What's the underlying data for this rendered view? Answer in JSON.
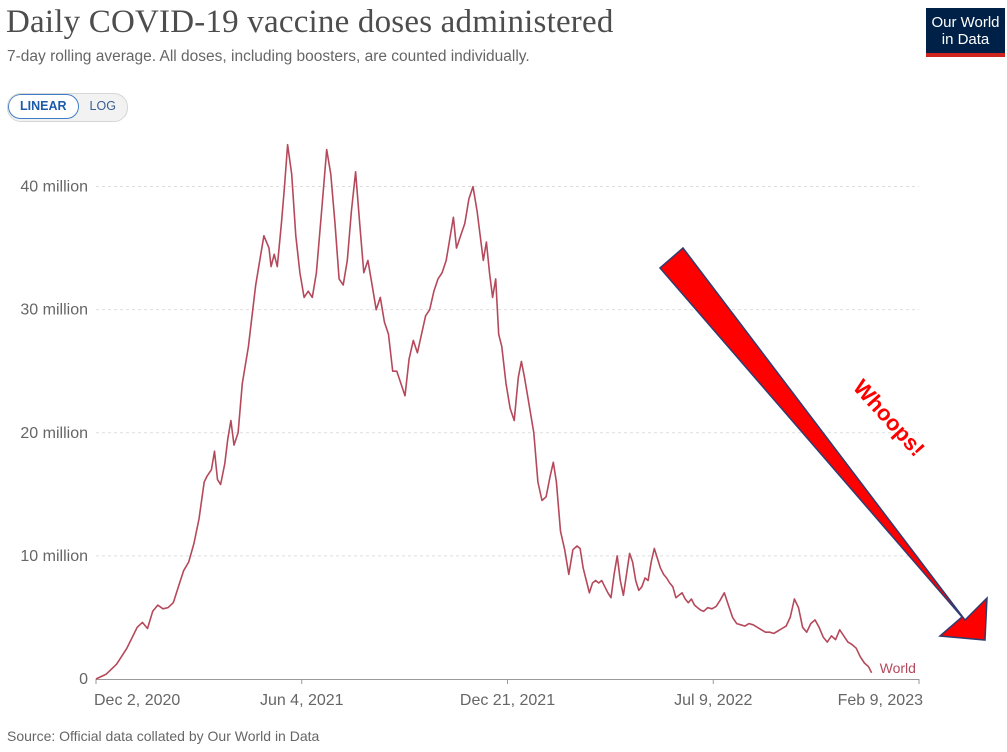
{
  "header": {
    "title": "Daily COVID-19 vaccine doses administered",
    "subtitle": "7-day rolling average. All doses, including boosters, are counted individually.",
    "logo_line1": "Our World",
    "logo_line2": "in Data",
    "logo_bg": "#002147",
    "logo_accent": "#ce261e"
  },
  "scale_toggle": {
    "linear_label": "LINEAR",
    "log_label": "LOG",
    "active": "linear"
  },
  "annotation": {
    "text": "Whoops!",
    "arrow_color": "#ff0000",
    "text_color": "#ff0000"
  },
  "footer": {
    "source": "Source: Official data collated by Our World in Data"
  },
  "chart_data": {
    "type": "line",
    "title": "Daily COVID-19 vaccine doses administered",
    "xlabel": "",
    "ylabel": "",
    "grid": true,
    "x_ticks": [
      "Dec 2, 2020",
      "Jun 4, 2021",
      "Dec 21, 2021",
      "Jul 9, 2022",
      "Feb 9, 2023"
    ],
    "y_ticks": [
      {
        "value": 0,
        "label": "0"
      },
      {
        "value": 10,
        "label": "10 million"
      },
      {
        "value": 20,
        "label": "20 million"
      },
      {
        "value": 30,
        "label": "30 million"
      },
      {
        "value": 40,
        "label": "40 million"
      }
    ],
    "x_unit": "days since Dec 2, 2020",
    "xlim": [
      0,
      799
    ],
    "ylim": [
      0,
      45
    ],
    "y_unit": "million doses",
    "series": [
      {
        "name": "World",
        "color": "#b5495b",
        "points": [
          [
            0,
            0
          ],
          [
            10,
            0.4
          ],
          [
            20,
            1.2
          ],
          [
            30,
            2.5
          ],
          [
            40,
            4.2
          ],
          [
            45,
            4.6
          ],
          [
            50,
            4.1
          ],
          [
            55,
            5.5
          ],
          [
            60,
            6.0
          ],
          [
            65,
            5.7
          ],
          [
            70,
            5.8
          ],
          [
            75,
            6.2
          ],
          [
            80,
            7.5
          ],
          [
            85,
            8.8
          ],
          [
            90,
            9.5
          ],
          [
            95,
            11
          ],
          [
            100,
            13
          ],
          [
            105,
            16
          ],
          [
            108,
            16.5
          ],
          [
            112,
            17
          ],
          [
            115,
            18.5
          ],
          [
            118,
            16.2
          ],
          [
            121,
            15.8
          ],
          [
            125,
            17.5
          ],
          [
            128,
            19.5
          ],
          [
            131,
            21
          ],
          [
            134,
            19
          ],
          [
            138,
            20
          ],
          [
            142,
            24
          ],
          [
            148,
            27
          ],
          [
            155,
            32
          ],
          [
            160,
            34.5
          ],
          [
            163,
            36
          ],
          [
            168,
            35
          ],
          [
            170,
            33.5
          ],
          [
            173,
            34.5
          ],
          [
            176,
            33.5
          ],
          [
            180,
            37
          ],
          [
            183,
            40
          ],
          [
            186,
            43.4
          ],
          [
            190,
            41
          ],
          [
            194,
            36
          ],
          [
            198,
            33
          ],
          [
            202,
            31
          ],
          [
            206,
            31.5
          ],
          [
            210,
            31
          ],
          [
            214,
            33
          ],
          [
            219,
            38
          ],
          [
            224,
            43
          ],
          [
            228,
            41
          ],
          [
            232,
            37
          ],
          [
            236,
            32.5
          ],
          [
            240,
            32
          ],
          [
            244,
            34
          ],
          [
            248,
            38
          ],
          [
            252,
            41.2
          ],
          [
            256,
            37
          ],
          [
            260,
            33
          ],
          [
            264,
            34
          ],
          [
            268,
            32
          ],
          [
            272,
            30
          ],
          [
            276,
            31
          ],
          [
            280,
            29
          ],
          [
            284,
            28
          ],
          [
            288,
            25
          ],
          [
            292,
            25
          ],
          [
            296,
            24
          ],
          [
            300,
            23
          ],
          [
            304,
            26
          ],
          [
            308,
            27.5
          ],
          [
            312,
            26.5
          ],
          [
            316,
            28
          ],
          [
            320,
            29.5
          ],
          [
            324,
            30
          ],
          [
            328,
            31.5
          ],
          [
            332,
            32.5
          ],
          [
            336,
            33
          ],
          [
            340,
            34
          ],
          [
            344,
            36
          ],
          [
            347,
            37.5
          ],
          [
            350,
            35
          ],
          [
            354,
            36
          ],
          [
            358,
            37
          ],
          [
            362,
            39
          ],
          [
            366,
            40
          ],
          [
            370,
            38
          ],
          [
            373,
            36
          ],
          [
            376,
            34
          ],
          [
            379,
            35.5
          ],
          [
            382,
            33
          ],
          [
            385,
            31
          ],
          [
            388,
            32.5
          ],
          [
            391,
            28
          ],
          [
            394,
            27
          ],
          [
            398,
            24
          ],
          [
            402,
            22
          ],
          [
            406,
            21
          ],
          [
            410,
            24.5
          ],
          [
            413,
            25.8
          ],
          [
            416,
            24.5
          ],
          [
            419,
            23
          ],
          [
            422,
            21.5
          ],
          [
            425,
            20
          ],
          [
            429,
            16
          ],
          [
            433,
            14.5
          ],
          [
            437,
            14.8
          ],
          [
            441,
            16.5
          ],
          [
            444,
            17.6
          ],
          [
            447,
            16
          ],
          [
            451,
            12
          ],
          [
            455,
            10.5
          ],
          [
            459,
            8.5
          ],
          [
            463,
            10.5
          ],
          [
            467,
            10.8
          ],
          [
            470,
            10.6
          ],
          [
            473,
            9.0
          ],
          [
            476,
            8.0
          ],
          [
            479,
            7.0
          ],
          [
            482,
            7.8
          ],
          [
            485,
            8.0
          ],
          [
            488,
            7.8
          ],
          [
            491,
            8.0
          ],
          [
            494,
            7.5
          ],
          [
            497,
            7.0
          ],
          [
            500,
            6.6
          ],
          [
            503,
            8.5
          ],
          [
            506,
            10.0
          ],
          [
            509,
            8.0
          ],
          [
            512,
            6.8
          ],
          [
            515,
            8.5
          ],
          [
            518,
            10.2
          ],
          [
            521,
            9.5
          ],
          [
            524,
            8.0
          ],
          [
            527,
            7.2
          ],
          [
            530,
            7.5
          ],
          [
            533,
            8.2
          ],
          [
            536,
            8.0
          ],
          [
            539,
            9.5
          ],
          [
            542,
            10.6
          ],
          [
            545,
            9.8
          ],
          [
            548,
            9.0
          ],
          [
            551,
            8.5
          ],
          [
            554,
            8.2
          ],
          [
            557,
            7.8
          ],
          [
            560,
            7.5
          ],
          [
            563,
            6.6
          ],
          [
            566,
            6.8
          ],
          [
            569,
            7.0
          ],
          [
            572,
            6.5
          ],
          [
            575,
            6.2
          ],
          [
            578,
            6.5
          ],
          [
            581,
            6.0
          ],
          [
            584,
            5.8
          ],
          [
            587,
            5.6
          ],
          [
            590,
            5.5
          ],
          [
            594,
            5.8
          ],
          [
            598,
            5.7
          ],
          [
            602,
            5.9
          ],
          [
            606,
            6.4
          ],
          [
            610,
            7.0
          ],
          [
            614,
            6.0
          ],
          [
            618,
            5.0
          ],
          [
            622,
            4.5
          ],
          [
            626,
            4.4
          ],
          [
            630,
            4.3
          ],
          [
            634,
            4.5
          ],
          [
            638,
            4.4
          ],
          [
            642,
            4.2
          ],
          [
            646,
            4.0
          ],
          [
            650,
            3.8
          ],
          [
            654,
            3.8
          ],
          [
            658,
            3.7
          ],
          [
            662,
            3.9
          ],
          [
            666,
            4.1
          ],
          [
            670,
            4.3
          ],
          [
            674,
            5.0
          ],
          [
            678,
            6.5
          ],
          [
            682,
            5.8
          ],
          [
            686,
            4.2
          ],
          [
            690,
            3.8
          ],
          [
            694,
            4.5
          ],
          [
            698,
            4.8
          ],
          [
            702,
            4.2
          ],
          [
            706,
            3.4
          ],
          [
            710,
            3.0
          ],
          [
            714,
            3.5
          ],
          [
            718,
            3.2
          ],
          [
            722,
            4.0
          ],
          [
            726,
            3.5
          ],
          [
            730,
            3.0
          ],
          [
            734,
            2.8
          ],
          [
            738,
            2.5
          ],
          [
            742,
            1.8
          ],
          [
            746,
            1.3
          ],
          [
            750,
            1.0
          ],
          [
            753,
            0.5
          ]
        ]
      }
    ]
  }
}
